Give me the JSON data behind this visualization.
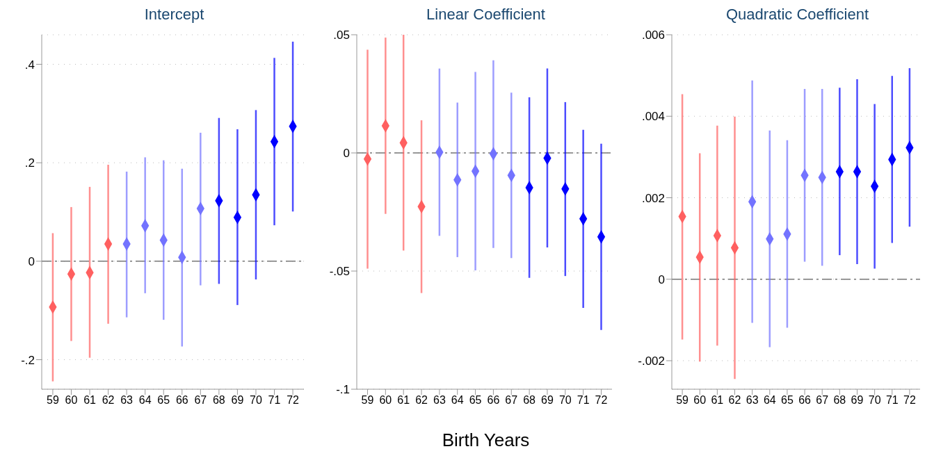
{
  "chart_data": [
    {
      "type": "scatter",
      "title": "Intercept",
      "categories": [
        "59",
        "60",
        "61",
        "62",
        "63",
        "64",
        "65",
        "66",
        "67",
        "68",
        "69",
        "70",
        "71",
        "72"
      ],
      "values": [
        -0.093,
        -0.026,
        -0.023,
        0.035,
        0.035,
        0.072,
        0.043,
        0.008,
        0.107,
        0.123,
        0.089,
        0.135,
        0.243,
        0.274
      ],
      "errors": [
        [
          -0.244,
          0.057
        ],
        [
          -0.162,
          0.11
        ],
        [
          -0.196,
          0.151
        ],
        [
          -0.127,
          0.196
        ],
        [
          -0.114,
          0.182
        ],
        [
          -0.065,
          0.211
        ],
        [
          -0.119,
          0.205
        ],
        [
          -0.173,
          0.188
        ],
        [
          -0.049,
          0.261
        ],
        [
          -0.046,
          0.291
        ],
        [
          -0.089,
          0.268
        ],
        [
          -0.037,
          0.307
        ],
        [
          0.073,
          0.413
        ],
        [
          0.101,
          0.446
        ]
      ],
      "colors": [
        "#ff6060",
        "#ff6060",
        "#ff6060",
        "#ff6060",
        "#7373ff",
        "#7373ff",
        "#7373ff",
        "#7373ff",
        "#7373ff",
        "#0000ff",
        "#0000ff",
        "#0000ff",
        "#0000ff",
        "#0000ff"
      ],
      "ylim": [
        -0.26,
        0.46
      ],
      "yticks": [
        {
          "value": -0.2,
          "label": "-.2"
        },
        {
          "value": 0,
          "label": "0"
        },
        {
          "value": 0.2,
          "label": ".2"
        },
        {
          "value": 0.4,
          "label": ".4"
        }
      ],
      "grid": "y",
      "marker": "diamond",
      "ref_lines": [
        {
          "axis": "y",
          "value": 0,
          "color": "#777777",
          "line_style": "dashed"
        }
      ]
    },
    {
      "type": "scatter",
      "title": "Linear Coefficient",
      "xlabel": "Birth Years",
      "categories": [
        "59",
        "60",
        "61",
        "62",
        "63",
        "64",
        "65",
        "66",
        "67",
        "68",
        "69",
        "70",
        "71",
        "72"
      ],
      "values": [
        -0.0026,
        0.0115,
        0.0043,
        -0.0227,
        0.0003,
        -0.0114,
        -0.0077,
        -0.0004,
        -0.0095,
        -0.0147,
        -0.0022,
        -0.0152,
        -0.0279,
        -0.0355
      ],
      "errors": [
        [
          -0.049,
          0.0437
        ],
        [
          -0.0258,
          0.0488
        ],
        [
          -0.0413,
          0.05
        ],
        [
          -0.0593,
          0.0138
        ],
        [
          -0.0351,
          0.0357
        ],
        [
          -0.0441,
          0.0213
        ],
        [
          -0.0497,
          0.0343
        ],
        [
          -0.0402,
          0.0392
        ],
        [
          -0.0445,
          0.0255
        ],
        [
          -0.0529,
          0.0235
        ],
        [
          -0.04,
          0.0357
        ],
        [
          -0.0521,
          0.0215
        ],
        [
          -0.0656,
          0.0098
        ],
        [
          -0.0749,
          0.0039
        ]
      ],
      "colors": [
        "#ff6060",
        "#ff6060",
        "#ff6060",
        "#ff6060",
        "#7373ff",
        "#7373ff",
        "#7373ff",
        "#7373ff",
        "#7373ff",
        "#0000ff",
        "#0000ff",
        "#0000ff",
        "#0000ff",
        "#0000ff"
      ],
      "ylim": [
        -0.1,
        0.05
      ],
      "yticks": [
        {
          "value": -0.1,
          "label": "-.1"
        },
        {
          "value": -0.05,
          "label": "-.05"
        },
        {
          "value": 0,
          "label": "0"
        },
        {
          "value": 0.05,
          "label": ".05"
        }
      ],
      "grid": "y",
      "marker": "diamond",
      "ref_lines": [
        {
          "axis": "y",
          "value": 0,
          "color": "#777777",
          "line_style": "dashed"
        }
      ]
    },
    {
      "type": "scatter",
      "title": "Quadratic Coefficient",
      "categories": [
        "59",
        "60",
        "61",
        "62",
        "63",
        "64",
        "65",
        "66",
        "67",
        "68",
        "69",
        "70",
        "71",
        "72"
      ],
      "values": [
        0.00154,
        0.00054,
        0.00107,
        0.00077,
        0.0019,
        0.00099,
        0.00111,
        0.00255,
        0.0025,
        0.00264,
        0.00264,
        0.00228,
        0.00294,
        0.00323
      ],
      "errors": [
        [
          -0.00148,
          0.00454
        ],
        [
          -0.00202,
          0.00309
        ],
        [
          -0.00163,
          0.00377
        ],
        [
          -0.00245,
          0.00399
        ],
        [
          -0.00107,
          0.00488
        ],
        [
          -0.00167,
          0.00365
        ],
        [
          -0.00119,
          0.00341
        ],
        [
          0.00043,
          0.00467
        ],
        [
          0.00033,
          0.00467
        ],
        [
          0.00059,
          0.0047
        ],
        [
          0.00037,
          0.00491
        ],
        [
          0.00026,
          0.0043
        ],
        [
          0.00089,
          0.00499
        ],
        [
          0.00129,
          0.00518
        ]
      ],
      "colors": [
        "#ff6060",
        "#ff6060",
        "#ff6060",
        "#ff6060",
        "#7373ff",
        "#7373ff",
        "#7373ff",
        "#7373ff",
        "#7373ff",
        "#0000ff",
        "#0000ff",
        "#0000ff",
        "#0000ff",
        "#0000ff"
      ],
      "ylim": [
        -0.0027,
        0.006
      ],
      "yticks": [
        {
          "value": -0.002,
          "label": "-.002"
        },
        {
          "value": 0,
          "label": "0"
        },
        {
          "value": 0.002,
          "label": ".002"
        },
        {
          "value": 0.004,
          "label": ".004"
        },
        {
          "value": 0.006,
          "label": ".006"
        }
      ],
      "grid": "y",
      "marker": "diamond",
      "ref_lines": [
        {
          "axis": "y",
          "value": 0,
          "color": "#777777",
          "line_style": "dashed"
        }
      ]
    }
  ]
}
